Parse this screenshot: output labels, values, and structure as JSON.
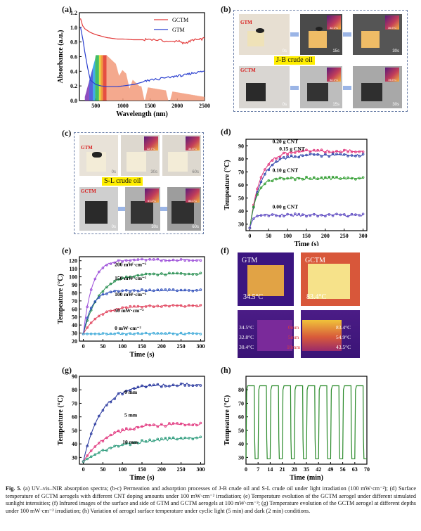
{
  "panel_labels": {
    "a": "(a)",
    "b": "(b)",
    "c": "(c)",
    "d": "(d)",
    "e": "(e)",
    "f": "(f)",
    "g": "(g)",
    "h": "(h)"
  },
  "panel_b": {
    "sample_top": "GTM",
    "sample_bottom": "GCTM",
    "oil_label": "J-B crude oil",
    "top_times": [
      "0s",
      "15s",
      "30s"
    ],
    "bottom_times": [
      "0s",
      "15s",
      "30s"
    ],
    "top_temps": [
      "32.1°C",
      "36.5°C"
    ],
    "bottom_temps": [
      "52.1°C",
      "78.5°C"
    ]
  },
  "panel_c": {
    "sample_top": "GTM",
    "sample_bottom": "GCTM",
    "oil_label": "S-L crude oil",
    "top_times": [
      "0s",
      "30s",
      "60s"
    ],
    "bottom_times": [
      "0s",
      "30s",
      "60s"
    ],
    "top_temps": [
      "32.7°C",
      "35.8°C"
    ],
    "bottom_temps": [
      "57.2°C",
      "80.1°C"
    ]
  },
  "panel_f": {
    "top_left_name": "GTM",
    "top_left_temp": "34.5°C",
    "top_right_name": "GCTM",
    "top_right_temp": "83.4°C",
    "side_left_temps": [
      "34.5°C",
      "32.8°C",
      "30.4°C"
    ],
    "side_depths": [
      "0mm",
      "5mm",
      "10mm"
    ],
    "side_right_temps": [
      "83.4°C",
      "54.9°C",
      "43.5°C"
    ]
  },
  "chart_data": [
    {
      "id": "a",
      "type": "line",
      "xlabel": "Wavelength (nm)",
      "ylabel": "Absorbance (a.u.)",
      "xlim": [
        200,
        2500
      ],
      "ylim": [
        0,
        1.2
      ],
      "xticks": [
        500,
        1000,
        1500,
        2000,
        2500
      ],
      "yticks": [
        0.0,
        0.2,
        0.4,
        0.6,
        0.8,
        1.0,
        1.2
      ],
      "legend": "top-right",
      "series": [
        {
          "name": "GCTM",
          "color": "#e23a3a",
          "x": [
            220,
            260,
            300,
            400,
            500,
            600,
            700,
            800,
            900,
            1000,
            1200,
            1400,
            1500,
            1700,
            1900,
            2000,
            2100,
            2200,
            2300,
            2400,
            2500
          ],
          "y": [
            1.12,
            1.02,
            0.98,
            0.93,
            0.9,
            0.88,
            0.86,
            0.85,
            0.84,
            0.84,
            0.83,
            0.83,
            0.84,
            0.82,
            0.8,
            0.82,
            0.78,
            0.8,
            0.83,
            0.83,
            0.85
          ]
        },
        {
          "name": "GTM",
          "color": "#2a3fcf",
          "x": [
            220,
            260,
            300,
            350,
            400,
            500,
            600,
            700,
            800,
            900,
            1000,
            1200,
            1400,
            1500,
            1700,
            1900,
            2000,
            2100,
            2200,
            2300,
            2400,
            2500
          ],
          "y": [
            1.0,
            0.85,
            0.66,
            0.45,
            0.28,
            0.22,
            0.2,
            0.19,
            0.19,
            0.19,
            0.2,
            0.22,
            0.26,
            0.28,
            0.3,
            0.32,
            0.34,
            0.34,
            0.36,
            0.38,
            0.39,
            0.4
          ]
        }
      ]
    },
    {
      "id": "d",
      "type": "line",
      "xlabel": "Time (s)",
      "ylabel": "Tempeature (°C)",
      "xlim": [
        -10,
        310
      ],
      "ylim": [
        25,
        95
      ],
      "xticks": [
        0,
        50,
        100,
        150,
        200,
        250,
        300
      ],
      "yticks": [
        30,
        40,
        50,
        60,
        70,
        80,
        90
      ],
      "series": [
        {
          "name": "0.20 g CNT",
          "color": "#e0307a",
          "final": 86,
          "rise": 28,
          "start": 27
        },
        {
          "name": "0.15 g CNT",
          "color": "#2a3fa8",
          "final": 83,
          "rise": 30,
          "start": 27
        },
        {
          "name": "0.10 g CNT",
          "color": "#2a9a2a",
          "final": 65,
          "rise": 18,
          "start": 27
        },
        {
          "name": "0.00 g CNT",
          "color": "#5a46c0",
          "final": 37,
          "rise": 8,
          "start": 27
        }
      ]
    },
    {
      "id": "e",
      "type": "line",
      "xlabel": "Time (s)",
      "ylabel": "Tempeature (°C)",
      "xlim": [
        -10,
        310
      ],
      "ylim": [
        20,
        125
      ],
      "xticks": [
        0,
        50,
        100,
        150,
        200,
        250,
        300
      ],
      "yticks": [
        20,
        30,
        40,
        50,
        60,
        70,
        80,
        90,
        100,
        110,
        120
      ],
      "series": [
        {
          "name": "200 mW·cm⁻²",
          "color": "#9a4ad8",
          "final": 121,
          "rise": 22,
          "start": 29
        },
        {
          "name": "150 mW·cm⁻²",
          "color": "#1f8a4a",
          "final": 104,
          "rise": 40,
          "start": 29
        },
        {
          "name": "100 mW·cm⁻²",
          "color": "#2a4ab8",
          "final": 83,
          "rise": 22,
          "start": 29
        },
        {
          "name": "50 mW·cm⁻²",
          "color": "#e0405a",
          "final": 64,
          "rise": 40,
          "start": 29
        },
        {
          "name": "0 mW·cm⁻²",
          "color": "#3aa8d8",
          "final": 29,
          "rise": 5,
          "start": 29
        }
      ]
    },
    {
      "id": "g",
      "type": "line",
      "xlabel": "Time (s)",
      "ylabel": "Tempeature (°C)",
      "xlim": [
        -10,
        310
      ],
      "ylim": [
        25,
        90
      ],
      "xticks": [
        0,
        50,
        100,
        150,
        200,
        250,
        300
      ],
      "yticks": [
        30,
        40,
        50,
        60,
        70,
        80,
        90
      ],
      "series": [
        {
          "name": "0 mm",
          "color": "#1f2f9a",
          "final": 84,
          "rise": 45,
          "start": 27
        },
        {
          "name": "5 mm",
          "color": "#e0307a",
          "final": 55,
          "rise": 60,
          "start": 27
        },
        {
          "name": "10 mm",
          "color": "#2a9a7a",
          "final": 45,
          "rise": 90,
          "start": 27
        }
      ]
    },
    {
      "id": "h",
      "type": "line",
      "xlabel": "Time (min)",
      "ylabel": "Tempeature (°C)",
      "xlim": [
        0,
        70
      ],
      "ylim": [
        25,
        90
      ],
      "xticks": [
        0,
        7,
        14,
        21,
        28,
        35,
        42,
        49,
        56,
        63,
        70
      ],
      "yticks": [
        30,
        40,
        50,
        60,
        70,
        80
      ],
      "series": [
        {
          "name": "",
          "color": "#2a8a2a",
          "high": 83,
          "low": 29,
          "period_min": 7,
          "cycles": 10
        }
      ]
    }
  ],
  "curve_labels": {
    "d": [
      "0.20 g CNT",
      "0.15 g CNT",
      "0.10 g CNT",
      "0.00 g CNT"
    ],
    "e": [
      "200 mW·cm⁻²",
      "150 mW·cm⁻²",
      "100 mW·cm⁻²",
      "50 mW·cm⁻²",
      "0 mW·cm⁻²"
    ],
    "g": [
      "0 mm",
      "5 mm",
      "10 mm"
    ]
  },
  "caption": {
    "lead": "Fig. 5.",
    "text": " (a) UV–vis–NIR absorption spectra; (b-c) Permeation and adsorption processes of J-B crude oil and S-L crude oil under light irradiation (100 mW·cm⁻²); (d) Surface temperature of GCTM aerogels with different CNT doping amounts under 100 mW·cm⁻² irradiation; (e) Temperature evolution of the GCTM aerogel under different simulated sunlight intensities; (f) Infrared images of the surface and side of GTM and GCTM aerogels at 100 mW·cm⁻²; (g) Temperature evolution of the GCTM aerogel at different depths under 100 mW·cm⁻² irradiation; (h) Variation of aerogel surface temperature under cyclic light (5 min) and dark (2 min) conditions."
  }
}
